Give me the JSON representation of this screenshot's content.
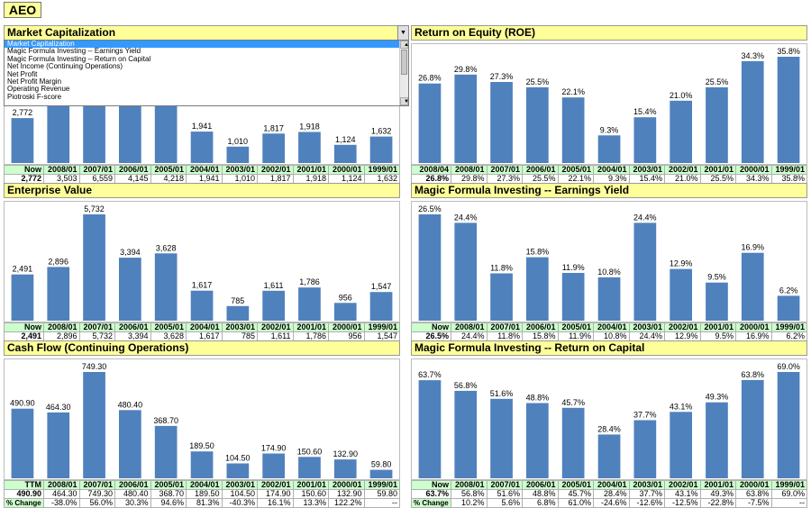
{
  "ticker": "AEO",
  "bar_color": "#4f81bd",
  "dropdown": {
    "selected": "Market Capitalization",
    "options": [
      "Market Capitalization",
      "Magic Formula Investing -- Earnings Yield",
      "Magic Formula Investing -- Return on Capital",
      "Net Income (Continuing Operations)",
      "Net Profit",
      "Net Profit Margin",
      "Operating Revenue",
      "Piotroski F-score"
    ]
  },
  "panels": [
    {
      "title": "Market Capitalization",
      "columns": [
        "Now",
        "2008/01",
        "2007/01",
        "2006/01",
        "2005/01",
        "2004/01",
        "2003/01",
        "2002/01",
        "2001/01",
        "2000/01",
        "1999/01"
      ],
      "values_text": [
        "2,772",
        "3,503",
        "6,559",
        "4,145",
        "4,218",
        "1,941",
        "1,010",
        "1,817",
        "1,918",
        "1,124",
        "1,632"
      ],
      "pct_label": "% Change",
      "pct_text": [
        "-46.6%",
        "58.2%",
        "-1.7%",
        "117.3%",
        "92.2%",
        "-44.4%",
        "-5.2%",
        "70.6%",
        "-31.1%",
        "--",
        ""
      ],
      "chart_data": {
        "type": "bar",
        "categories": [
          "Now",
          "2008/01",
          "2007/01",
          "2006/01",
          "2005/01",
          "2004/01",
          "2003/01",
          "2002/01",
          "2001/01",
          "2000/01",
          "1999/01"
        ],
        "values": [
          2772,
          3503,
          6559,
          4145,
          4218,
          1941,
          1010,
          1817,
          1918,
          1124,
          1632
        ],
        "labels": [
          "2,772",
          "3,503",
          "6,559",
          "4,145",
          "4,218",
          "1,941",
          "1,010",
          "1,817",
          "1,918",
          "1,124",
          "1,632"
        ]
      }
    },
    {
      "title": "Return on Equity (ROE)",
      "columns": [
        "2008/04",
        "2008/01",
        "2007/01",
        "2006/01",
        "2005/01",
        "2004/01",
        "2003/01",
        "2002/01",
        "2001/01",
        "2000/01",
        "1999/01"
      ],
      "values_text": [
        "26.8%",
        "29.8%",
        "27.3%",
        "25.5%",
        "22.1%",
        "9.3%",
        "15.4%",
        "21.0%",
        "25.5%",
        "34.3%",
        "35.8%"
      ],
      "pct_label": "% Change",
      "pct_text": [
        "9.2%",
        "7.1%",
        "15.4%",
        "137.6%",
        "-39.6%",
        "-26.7%",
        "-17.6%",
        "-25.7%",
        "-4.2%",
        "--",
        ""
      ],
      "chart_data": {
        "type": "bar",
        "categories": [
          "2008/04",
          "2008/01",
          "2007/01",
          "2006/01",
          "2005/01",
          "2004/01",
          "2003/01",
          "2002/01",
          "2001/01",
          "2000/01",
          "1999/01"
        ],
        "values": [
          26.8,
          29.8,
          27.3,
          25.5,
          22.1,
          9.3,
          15.4,
          21.0,
          25.5,
          34.3,
          35.8
        ],
        "labels": [
          "26.8%",
          "29.8%",
          "27.3%",
          "25.5%",
          "22.1%",
          "9.3%",
          "15.4%",
          "21.0%",
          "25.5%",
          "34.3%",
          "35.8%"
        ]
      }
    },
    {
      "title": "Enterprise Value",
      "columns": [
        "Now",
        "2008/01",
        "2007/01",
        "2006/01",
        "2005/01",
        "2004/01",
        "2003/01",
        "2002/01",
        "2001/01",
        "2000/01",
        "1999/01"
      ],
      "values_text": [
        "2,491",
        "2,896",
        "5,732",
        "3,394",
        "3,628",
        "1,617",
        "785",
        "1,611",
        "1,786",
        "956",
        "1,547"
      ],
      "pct_label": "% Change",
      "pct_text": [
        "-49.5%",
        "68.9%",
        "-6.5%",
        "124.4%",
        "106.1%",
        "-51.3%",
        "-9.8%",
        "86.9%",
        "-38.2%",
        "--",
        ""
      ],
      "chart_data": {
        "type": "bar",
        "categories": [
          "Now",
          "2008/01",
          "2007/01",
          "2006/01",
          "2005/01",
          "2004/01",
          "2003/01",
          "2002/01",
          "2001/01",
          "2000/01",
          "1999/01"
        ],
        "values": [
          2491,
          2896,
          5732,
          3394,
          3628,
          1617,
          785,
          1611,
          1786,
          956,
          1547
        ],
        "labels": [
          "2,491",
          "2,896",
          "5,732",
          "3,394",
          "3,628",
          "1,617",
          "785",
          "1,611",
          "1,786",
          "956",
          "1,547"
        ]
      }
    },
    {
      "title": "Magic Formula Investing --  Earnings Yield",
      "columns": [
        "Now",
        "2008/01",
        "2007/01",
        "2006/01",
        "2005/01",
        "2004/01",
        "2003/01",
        "2002/01",
        "2001/01",
        "2000/01",
        "1999/01"
      ],
      "values_text": [
        "26.5%",
        "24.4%",
        "11.8%",
        "15.8%",
        "11.9%",
        "10.8%",
        "24.4%",
        "12.9%",
        "9.5%",
        "16.9%",
        "6.2%"
      ],
      "pct_label": "% Change",
      "pct_text": [
        "107.7%",
        "-25.4%",
        "32.9%",
        "9.8%",
        "-55.7%",
        "89.0%",
        "35.9%",
        "-43.8%",
        "173.6%",
        "--",
        ""
      ],
      "chart_data": {
        "type": "bar",
        "categories": [
          "Now",
          "2008/01",
          "2007/01",
          "2006/01",
          "2005/01",
          "2004/01",
          "2003/01",
          "2002/01",
          "2001/01",
          "2000/01",
          "1999/01"
        ],
        "values": [
          26.5,
          24.4,
          11.8,
          15.8,
          11.9,
          10.8,
          24.4,
          12.9,
          9.5,
          16.9,
          6.2
        ],
        "labels": [
          "26.5%",
          "24.4%",
          "11.8%",
          "15.8%",
          "11.9%",
          "10.8%",
          "24.4%",
          "12.9%",
          "9.5%",
          "16.9%",
          "6.2%"
        ]
      }
    },
    {
      "title": "Cash Flow (Continuing Operations)",
      "columns": [
        "TTM",
        "2008/01",
        "2007/01",
        "2006/01",
        "2005/01",
        "2004/01",
        "2003/01",
        "2002/01",
        "2001/01",
        "2000/01",
        "1999/01"
      ],
      "values_text": [
        "490.90",
        "464.30",
        "749.30",
        "480.40",
        "368.70",
        "189.50",
        "104.50",
        "174.90",
        "150.60",
        "132.90",
        "59.80"
      ],
      "pct_label": "% Change",
      "pct_text": [
        "-38.0%",
        "56.0%",
        "30.3%",
        "94.6%",
        "81.3%",
        "-40.3%",
        "16.1%",
        "13.3%",
        "122.2%",
        "--",
        ""
      ],
      "chart_data": {
        "type": "bar",
        "categories": [
          "TTM",
          "2008/01",
          "2007/01",
          "2006/01",
          "2005/01",
          "2004/01",
          "2003/01",
          "2002/01",
          "2001/01",
          "2000/01",
          "1999/01"
        ],
        "values": [
          490.9,
          464.3,
          749.3,
          480.4,
          368.7,
          189.5,
          104.5,
          174.9,
          150.6,
          132.9,
          59.8
        ],
        "labels": [
          "490.90",
          "464.30",
          "749.30",
          "480.40",
          "368.70",
          "189.50",
          "104.50",
          "174.90",
          "150.60",
          "132.90",
          "59.80"
        ]
      }
    },
    {
      "title": "Magic Formula Investing --  Return on Capital",
      "columns": [
        "Now",
        "2008/01",
        "2007/01",
        "2006/01",
        "2005/01",
        "2004/01",
        "2003/01",
        "2002/01",
        "2001/01",
        "2000/01",
        "1999/01"
      ],
      "values_text": [
        "63.7%",
        "56.8%",
        "51.6%",
        "48.8%",
        "45.7%",
        "28.4%",
        "37.7%",
        "43.1%",
        "49.3%",
        "63.8%",
        "69.0%"
      ],
      "pct_label": "% Change",
      "pct_text": [
        "10.2%",
        "5.6%",
        "6.8%",
        "61.0%",
        "-24.6%",
        "-12.6%",
        "-12.5%",
        "-22.8%",
        "-7.5%",
        "--",
        ""
      ],
      "chart_data": {
        "type": "bar",
        "categories": [
          "Now",
          "2008/01",
          "2007/01",
          "2006/01",
          "2005/01",
          "2004/01",
          "2003/01",
          "2002/01",
          "2001/01",
          "2000/01",
          "1999/01"
        ],
        "values": [
          63.7,
          56.8,
          51.6,
          48.8,
          45.7,
          28.4,
          37.7,
          43.1,
          49.3,
          63.8,
          69.0
        ],
        "labels": [
          "63.7%",
          "56.8%",
          "51.6%",
          "48.8%",
          "45.7%",
          "28.4%",
          "37.7%",
          "43.1%",
          "49.3%",
          "63.8%",
          "69.0%"
        ]
      }
    }
  ]
}
